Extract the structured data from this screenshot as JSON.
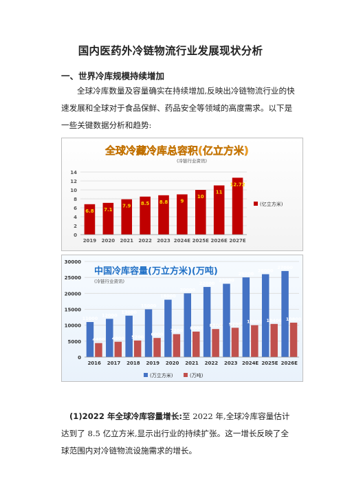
{
  "doc": {
    "title": "国内医药外冷链物流行业发展现状分析",
    "section1": "一、世界冷库规模持续增加",
    "intro": "全球冷库数量及容量确实在持续增加,反映出冷链物流行业的快速发展和全球对于食品保鲜、药品安全等领域的高度需求。以下是一些关键数据分析和趋势:",
    "point1_head": "(1)2022 年全球冷库容量增长:",
    "point1_body": "至 2022 年,全球冷库容量估计达到了 8.5 亿立方米,显示出行业的持续扩张。这一增长反映了全球范围内对冷链物流设施需求的增长。"
  },
  "chart_data": [
    {
      "type": "bar",
      "title": "全球冷藏冷库总容积(亿立方米)",
      "subtitle": "(冷链行业资讯)",
      "categories": [
        "2019",
        "2020",
        "2021",
        "2022",
        "2023",
        "2024E",
        "2025E",
        "2026E",
        "2027E"
      ],
      "series": [
        {
          "name": "(亿立方米)",
          "values": [
            6.8,
            7.1,
            7.9,
            8.5,
            8.8,
            9,
            10,
            11,
            12.72
          ],
          "labels": [
            "6.8",
            "7.1",
            "7.9",
            "8.5",
            "8.8",
            "9",
            "10",
            "11",
            "12.72"
          ],
          "color": "#c00000"
        }
      ],
      "ylim": [
        0,
        14
      ],
      "yticks": [
        0,
        2,
        4,
        6,
        8,
        10,
        12,
        14
      ],
      "grid": true,
      "legend": "right"
    },
    {
      "type": "bar",
      "title": "中国冷库容量(万立方米)(万吨)",
      "subtitle": "(冷链行业资讯)",
      "categories": [
        "2016",
        "2017",
        "2018",
        "2019",
        "2020",
        "2021",
        "2022",
        "2023",
        "2024E",
        "2025E",
        "2026E"
      ],
      "series": [
        {
          "name": "(万立方米)",
          "values": [
            11000,
            12000,
            13000,
            15000,
            18000,
            20000,
            22000,
            23000,
            25000,
            26000,
            27000
          ],
          "labels": [
            "11000",
            "12000",
            "13000",
            "15000",
            "18000",
            "20000",
            "22000",
            "23000",
            "25000",
            "26000",
            "27000"
          ],
          "color": "#4472c4"
        },
        {
          "name": "(万吨)",
          "values": [
            4400,
            4800,
            5200,
            6000,
            7200,
            8000,
            8800,
            9200,
            10000,
            10400,
            10800
          ],
          "labels": [
            "4400",
            "4800",
            "5200",
            "6000",
            "7200",
            "8000",
            "8800",
            "9200",
            "10000",
            "10400",
            "10800"
          ],
          "color": "#c0504d"
        }
      ],
      "ylim": [
        0,
        30000
      ],
      "yticks": [
        0,
        5000,
        10000,
        15000,
        20000,
        25000,
        30000
      ],
      "grid": true,
      "legend": "bottom"
    }
  ]
}
